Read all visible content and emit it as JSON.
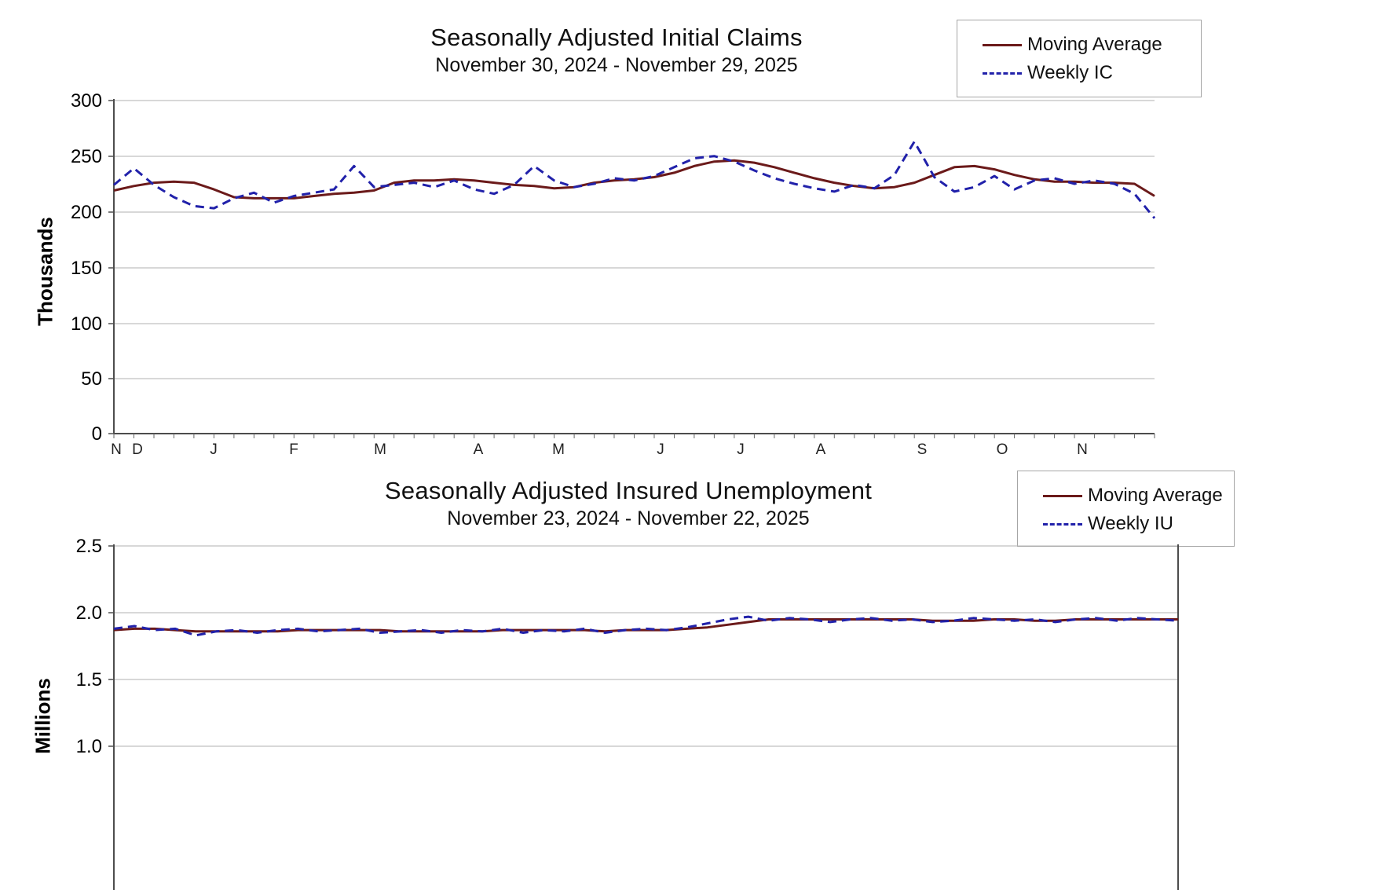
{
  "colors": {
    "moving_average": "#6b1a1a",
    "weekly": "#2121aa",
    "gridline": "#b0b0b0",
    "axis": "#4d4d4d"
  },
  "chart_data": [
    {
      "type": "line",
      "title": "Seasonally Adjusted Initial Claims",
      "subtitle": "November 30, 2024 - November 29, 2025",
      "ylabel": "Thousands",
      "ylim": [
        0,
        300
      ],
      "grid": true,
      "legend_position": "top-right",
      "y_ticks": [
        "300",
        "250",
        "200",
        "150",
        "100",
        "50",
        "0"
      ],
      "x_ticks": [
        "N",
        "D",
        "J",
        "F",
        "M",
        "A",
        "M",
        "J",
        "J",
        "A",
        "S",
        "O",
        "N"
      ],
      "legend": [
        {
          "label": "Moving Average",
          "style": "solid"
        },
        {
          "label": "Weekly IC",
          "style": "dashed"
        }
      ],
      "series": [
        {
          "name": "Moving Average",
          "color": "#6b1a1a",
          "dash": false,
          "values": [
            219,
            223,
            226,
            227,
            226,
            220,
            213,
            212,
            212,
            212,
            214,
            216,
            217,
            219,
            226,
            228,
            228,
            229,
            228,
            226,
            224,
            223,
            221,
            222,
            226,
            228,
            229,
            231,
            235,
            241,
            245,
            246,
            244,
            240,
            235,
            230,
            226,
            223,
            221,
            222,
            226,
            233,
            240,
            241,
            238,
            233,
            229,
            227,
            227,
            226,
            226,
            225,
            214
          ]
        },
        {
          "name": "Weekly IC",
          "color": "#2121aa",
          "dash": true,
          "values": [
            224,
            239,
            224,
            213,
            205,
            203,
            212,
            217,
            208,
            214,
            217,
            220,
            241,
            222,
            224,
            226,
            222,
            228,
            220,
            216,
            224,
            241,
            228,
            222,
            225,
            230,
            228,
            232,
            240,
            248,
            250,
            245,
            237,
            230,
            225,
            221,
            218,
            224,
            221,
            233,
            263,
            231,
            218,
            222,
            232,
            220,
            228,
            230,
            225,
            228,
            225,
            216,
            194
          ]
        }
      ]
    },
    {
      "type": "line",
      "title": "Seasonally Adjusted Insured Unemployment",
      "subtitle": "November 23, 2024 - November 22, 2025",
      "ylabel": "Millions",
      "ylim": [
        0,
        2.5
      ],
      "grid": true,
      "legend_position": "top-right",
      "y_ticks": [
        "2.5",
        "2.0",
        "1.5",
        "1.0"
      ],
      "x_ticks": [],
      "legend": [
        {
          "label": "Moving Average",
          "style": "solid"
        },
        {
          "label": "Weekly IU",
          "style": "dashed"
        }
      ],
      "series": [
        {
          "name": "Moving Average",
          "color": "#6b1a1a",
          "dash": false,
          "values": [
            1.87,
            1.88,
            1.88,
            1.87,
            1.86,
            1.86,
            1.86,
            1.86,
            1.86,
            1.87,
            1.87,
            1.87,
            1.87,
            1.87,
            1.86,
            1.86,
            1.86,
            1.86,
            1.86,
            1.87,
            1.87,
            1.87,
            1.87,
            1.87,
            1.86,
            1.87,
            1.87,
            1.87,
            1.88,
            1.89,
            1.91,
            1.93,
            1.95,
            1.95,
            1.95,
            1.95,
            1.95,
            1.95,
            1.95,
            1.95,
            1.94,
            1.94,
            1.94,
            1.95,
            1.95,
            1.94,
            1.94,
            1.95,
            1.95,
            1.95,
            1.95,
            1.95,
            1.95
          ]
        },
        {
          "name": "Weekly IU",
          "color": "#2121aa",
          "dash": true,
          "values": [
            1.88,
            1.9,
            1.87,
            1.88,
            1.83,
            1.86,
            1.87,
            1.85,
            1.87,
            1.88,
            1.86,
            1.87,
            1.88,
            1.85,
            1.86,
            1.87,
            1.85,
            1.87,
            1.86,
            1.88,
            1.85,
            1.87,
            1.86,
            1.88,
            1.85,
            1.87,
            1.88,
            1.87,
            1.89,
            1.92,
            1.95,
            1.97,
            1.94,
            1.96,
            1.95,
            1.93,
            1.95,
            1.96,
            1.94,
            1.95,
            1.93,
            1.94,
            1.96,
            1.95,
            1.94,
            1.95,
            1.93,
            1.95,
            1.96,
            1.94,
            1.96,
            1.95,
            1.94
          ]
        }
      ]
    }
  ]
}
